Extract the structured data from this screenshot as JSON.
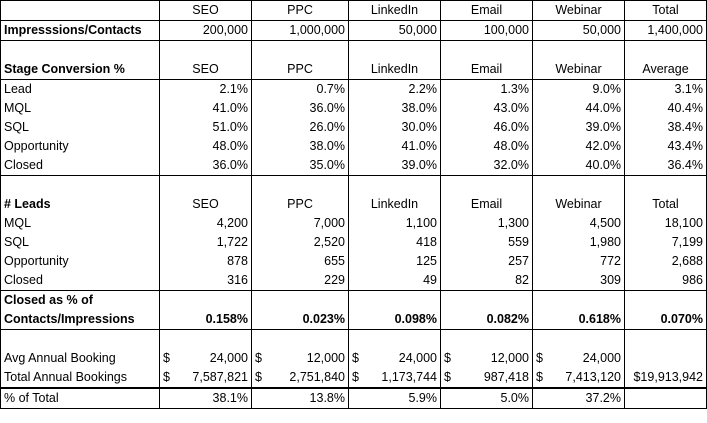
{
  "sections": {
    "impressions": {
      "header": [
        "SEO",
        "PPC",
        "LinkedIn",
        "Email",
        "Webinar",
        "Total"
      ],
      "row": {
        "label": "Impresssions/Contacts",
        "values": [
          "200,000",
          "1,000,000",
          "50,000",
          "100,000",
          "50,000",
          "1,400,000"
        ]
      }
    },
    "conversion": {
      "title": "Stage Conversion %",
      "header": [
        "SEO",
        "PPC",
        "LinkedIn",
        "Email",
        "Webinar",
        "Average"
      ],
      "rows": [
        {
          "label": "Lead",
          "values": [
            "2.1%",
            "0.7%",
            "2.2%",
            "1.3%",
            "9.0%",
            "3.1%"
          ]
        },
        {
          "label": "MQL",
          "values": [
            "41.0%",
            "36.0%",
            "38.0%",
            "43.0%",
            "44.0%",
            "40.4%"
          ]
        },
        {
          "label": "SQL",
          "values": [
            "51.0%",
            "26.0%",
            "30.0%",
            "46.0%",
            "39.0%",
            "38.4%"
          ]
        },
        {
          "label": "Opportunity",
          "values": [
            "48.0%",
            "38.0%",
            "41.0%",
            "48.0%",
            "42.0%",
            "43.4%"
          ]
        },
        {
          "label": "Closed",
          "values": [
            "36.0%",
            "35.0%",
            "39.0%",
            "32.0%",
            "40.0%",
            "36.4%"
          ]
        }
      ]
    },
    "leads": {
      "title": "# Leads",
      "header": [
        "SEO",
        "PPC",
        "LinkedIn",
        "Email",
        "Webinar",
        "Total"
      ],
      "rows": [
        {
          "label": "MQL",
          "values": [
            "4,200",
            "7,000",
            "1,100",
            "1,300",
            "4,500",
            "18,100"
          ]
        },
        {
          "label": "SQL",
          "values": [
            "1,722",
            "2,520",
            "418",
            "559",
            "1,980",
            "7,199"
          ]
        },
        {
          "label": "Opportunity",
          "values": [
            "878",
            "655",
            "125",
            "257",
            "772",
            "2,688"
          ]
        },
        {
          "label": "Closed",
          "values": [
            "316",
            "229",
            "49",
            "82",
            "309",
            "986"
          ]
        }
      ],
      "closed_pct": {
        "label_line1": "Closed as % of",
        "label_line2": "Contacts/Impressions",
        "values": [
          "0.158%",
          "0.023%",
          "0.098%",
          "0.082%",
          "0.618%",
          "0.070%"
        ]
      }
    },
    "bookings": {
      "avg": {
        "label": "Avg Annual Booking",
        "values": [
          "24,000",
          "12,000",
          "24,000",
          "12,000",
          "24,000"
        ]
      },
      "total": {
        "label": "Total Annual Bookings",
        "values": [
          "7,587,821",
          "2,751,840",
          "1,173,744",
          "987,418",
          "7,413,120"
        ],
        "grand_total": "$19,913,942"
      },
      "currency": "$"
    },
    "pct_total": {
      "label": "% of Total",
      "values": [
        "38.1%",
        "13.8%",
        "5.9%",
        "5.0%",
        "37.2%"
      ]
    }
  }
}
